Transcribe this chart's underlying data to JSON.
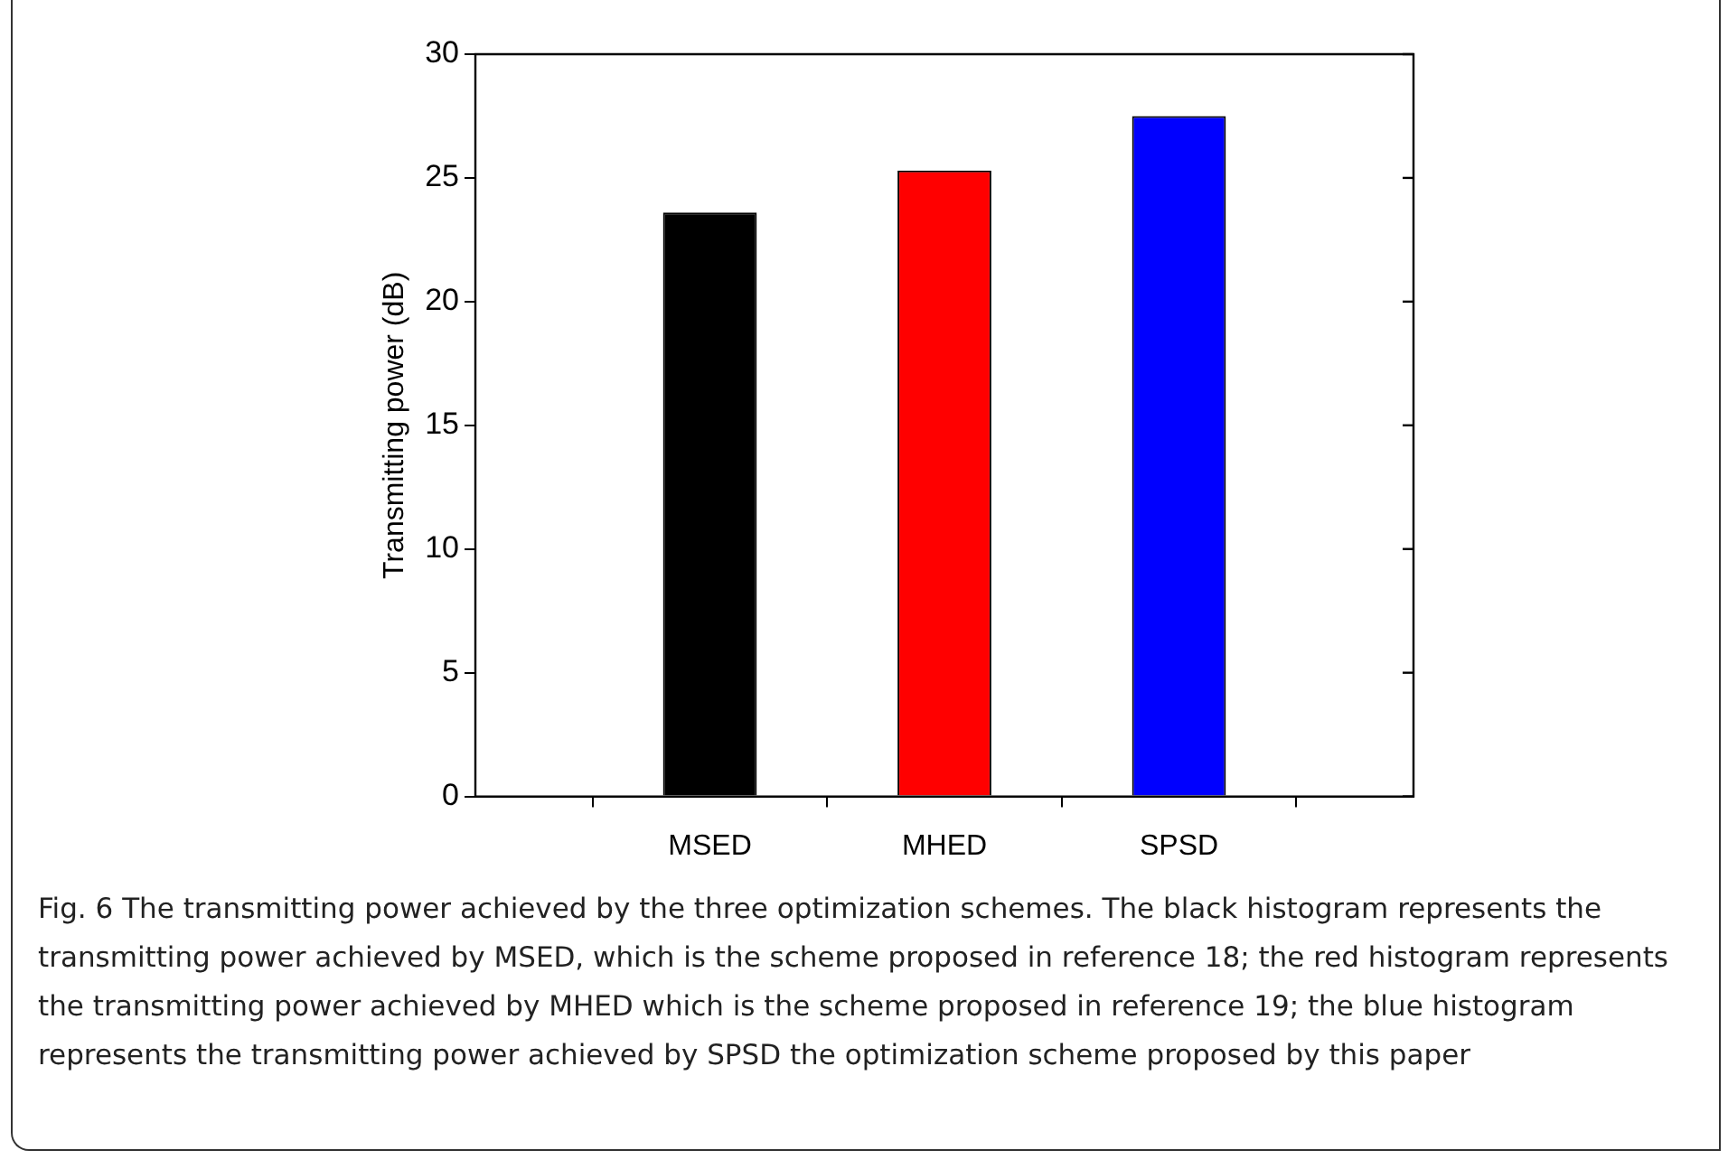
{
  "chart_data": {
    "type": "bar",
    "ylabel": "Transmitting power (dB)",
    "categories": [
      "MSED",
      "MHED",
      "SPSD"
    ],
    "values": [
      23.6,
      25.3,
      27.5
    ],
    "colors": [
      "#000000",
      "#ff0000",
      "#0000ff"
    ],
    "ylim": [
      0,
      30
    ],
    "yticks": [
      0,
      5,
      10,
      15,
      20,
      25,
      30
    ],
    "grid": false,
    "legend": false,
    "annotations": [
      "Fig. 6 The transmitting power achieved by the three optimization schemes. The black histogram represents the transmitting power achieved by MSED, which is the scheme proposed in reference 18; the red histogram represents the transmitting power achieved by MHED which is the scheme proposed in reference 19; the blue histogram represents the transmitting power achieved by SPSD the optimization scheme proposed by this paper"
    ]
  }
}
